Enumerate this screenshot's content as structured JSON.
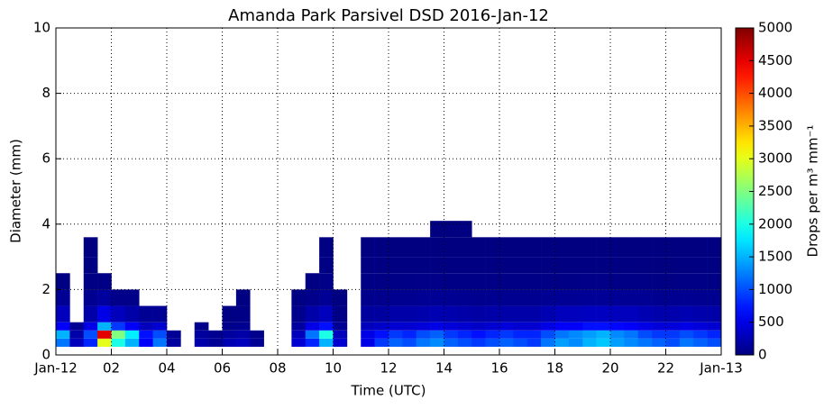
{
  "chart_data": {
    "type": "heatmap",
    "title": "Amanda Park Parsivel DSD 2016-Jan-12",
    "xlabel": "Time (UTC)",
    "ylabel": "Diameter (mm)",
    "colorbar_label": "Drops per m³ mm⁻¹",
    "colormap": "jet",
    "grid": true,
    "xlim": [
      0,
      24
    ],
    "ylim": [
      0,
      10
    ],
    "xticks": [
      {
        "value": 0,
        "label": "Jan-12"
      },
      {
        "value": 2,
        "label": "02"
      },
      {
        "value": 4,
        "label": "04"
      },
      {
        "value": 6,
        "label": "06"
      },
      {
        "value": 8,
        "label": "08"
      },
      {
        "value": 10,
        "label": "10"
      },
      {
        "value": 12,
        "label": "12"
      },
      {
        "value": 14,
        "label": "14"
      },
      {
        "value": 16,
        "label": "16"
      },
      {
        "value": 18,
        "label": "18"
      },
      {
        "value": 20,
        "label": "20"
      },
      {
        "value": 22,
        "label": "22"
      },
      {
        "value": 24,
        "label": "Jan-13"
      }
    ],
    "yticks": [
      0,
      2,
      4,
      6,
      8,
      10
    ],
    "clim": [
      0,
      5000
    ],
    "cticks": [
      0,
      500,
      1000,
      1500,
      2000,
      2500,
      3000,
      3500,
      4000,
      4500,
      5000
    ],
    "x_edges": [
      0,
      0.5,
      1,
      1.5,
      2,
      2.5,
      3,
      3.5,
      4,
      4.5,
      5,
      5.5,
      6,
      6.5,
      7,
      7.5,
      8,
      8.5,
      9,
      9.5,
      10,
      10.5,
      11,
      11.5,
      12,
      12.5,
      13,
      13.5,
      14,
      14.5,
      15,
      15.5,
      16,
      16.5,
      17,
      17.5,
      18,
      18.5,
      19,
      19.5,
      20,
      20.5,
      21,
      21.5,
      22,
      22.5,
      23,
      23.5,
      24
    ],
    "y_edges": [
      0.25,
      0.5,
      0.75,
      1.0,
      1.5,
      2.0,
      2.5,
      3.0,
      3.6,
      4.1
    ],
    "z": [
      [
        1200,
        300,
        800,
        3000,
        2000,
        1500,
        600,
        1200,
        150,
        null,
        200,
        100,
        250,
        300,
        100,
        null,
        null,
        400,
        800,
        1500,
        400,
        null,
        500,
        900,
        1100,
        1000,
        1200,
        1300,
        1100,
        1000,
        900,
        1000,
        1100,
        1000,
        900,
        1200,
        1400,
        1300,
        1500,
        1600,
        1400,
        1300,
        1200,
        1100,
        1000,
        1200,
        1100,
        1000
      ],
      [
        1500,
        200,
        1000,
        4500,
        2500,
        1800,
        700,
        1000,
        100,
        null,
        150,
        80,
        150,
        200,
        60,
        null,
        null,
        300,
        1200,
        2000,
        300,
        null,
        500,
        700,
        900,
        800,
        1000,
        1100,
        900,
        800,
        700,
        800,
        900,
        800,
        800,
        1000,
        1200,
        1300,
        1400,
        1500,
        1300,
        1200,
        1000,
        900,
        900,
        1000,
        900,
        800
      ],
      [
        600,
        100,
        500,
        1500,
        900,
        600,
        300,
        400,
        null,
        null,
        50,
        null,
        60,
        80,
        null,
        null,
        null,
        150,
        500,
        700,
        100,
        null,
        300,
        350,
        400,
        400,
        450,
        500,
        450,
        400,
        350,
        400,
        450,
        400,
        400,
        500,
        600,
        600,
        700,
        700,
        650,
        600,
        500,
        450,
        450,
        500,
        450,
        400
      ],
      [
        300,
        null,
        200,
        500,
        300,
        200,
        100,
        100,
        null,
        null,
        null,
        null,
        20,
        30,
        null,
        null,
        null,
        60,
        200,
        300,
        30,
        null,
        150,
        150,
        200,
        200,
        220,
        250,
        220,
        200,
        180,
        200,
        200,
        200,
        200,
        250,
        300,
        300,
        320,
        320,
        300,
        300,
        250,
        220,
        220,
        250,
        220,
        200
      ],
      [
        100,
        null,
        80,
        150,
        50,
        40,
        null,
        null,
        null,
        null,
        null,
        null,
        null,
        10,
        null,
        null,
        null,
        20,
        50,
        100,
        10,
        null,
        60,
        60,
        80,
        80,
        90,
        100,
        90,
        80,
        70,
        80,
        80,
        80,
        80,
        90,
        100,
        100,
        110,
        110,
        100,
        100,
        90,
        80,
        80,
        90,
        80,
        80
      ],
      [
        20,
        null,
        20,
        30,
        null,
        null,
        null,
        null,
        null,
        null,
        null,
        null,
        null,
        null,
        null,
        null,
        null,
        null,
        10,
        40,
        null,
        null,
        30,
        20,
        30,
        30,
        40,
        40,
        30,
        30,
        25,
        30,
        30,
        30,
        30,
        30,
        35,
        35,
        40,
        40,
        35,
        30,
        30,
        25,
        25,
        30,
        30,
        30
      ],
      [
        null,
        null,
        10,
        null,
        null,
        null,
        null,
        null,
        null,
        null,
        null,
        null,
        null,
        null,
        null,
        null,
        null,
        null,
        null,
        20,
        null,
        null,
        15,
        10,
        10,
        12,
        15,
        15,
        12,
        10,
        10,
        10,
        10,
        10,
        10,
        10,
        10,
        10,
        12,
        10,
        10,
        10,
        8,
        8,
        8,
        10,
        10,
        10
      ],
      [
        null,
        null,
        5,
        null,
        null,
        null,
        null,
        null,
        null,
        null,
        null,
        null,
        null,
        null,
        null,
        null,
        null,
        null,
        null,
        10,
        null,
        null,
        5,
        5,
        5,
        5,
        5,
        6,
        5,
        5,
        4,
        5,
        4,
        4,
        4,
        4,
        4,
        4,
        5,
        4,
        4,
        4,
        3,
        3,
        3,
        5,
        5,
        5
      ],
      [
        null,
        null,
        null,
        null,
        null,
        null,
        null,
        null,
        null,
        null,
        null,
        null,
        null,
        null,
        null,
        null,
        null,
        null,
        null,
        null,
        null,
        null,
        null,
        null,
        null,
        null,
        null,
        3,
        3,
        3,
        null,
        null,
        null,
        null,
        null,
        null,
        null,
        null,
        null,
        null,
        null,
        null,
        null,
        null,
        null,
        null,
        null,
        null
      ]
    ]
  }
}
